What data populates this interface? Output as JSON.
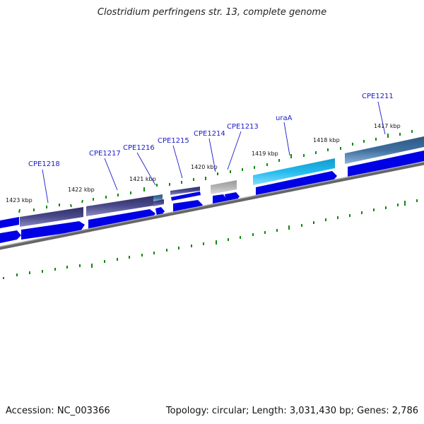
{
  "title": "Clostridium perfringens str. 13, complete genome",
  "accession": "Accession: NC_003366",
  "topology": "Topology: circular; Length: 3,031,430 bp; Genes: 2,786",
  "genes": [
    {
      "label": "CPE1218",
      "color": "#4a4a8c"
    },
    {
      "label": "CPE1217",
      "color": "#4a4a8c"
    },
    {
      "label": "CPE1216",
      "color": "#3f7fb8"
    },
    {
      "label": "CPE1215",
      "color": "#4a4a8c"
    },
    {
      "label": "CPE1214",
      "color": "#aaaaaa"
    },
    {
      "label": "CPE1213",
      "color": "#aaaaaa"
    },
    {
      "label": "uraA",
      "color": "#22bbee"
    },
    {
      "label": "CPE1211",
      "color": "#3f6f9f"
    }
  ],
  "kbp_labels": [
    "1423 kbp",
    "1422 kbp",
    "1421 kbp",
    "1420 kbp",
    "1419 kbp",
    "1418 kbp",
    "1417 kbp"
  ],
  "colors": {
    "cds_arrow": "#0000e6",
    "backbone": "#888888",
    "tick": "#118811",
    "label_text": "#1a1acc"
  }
}
